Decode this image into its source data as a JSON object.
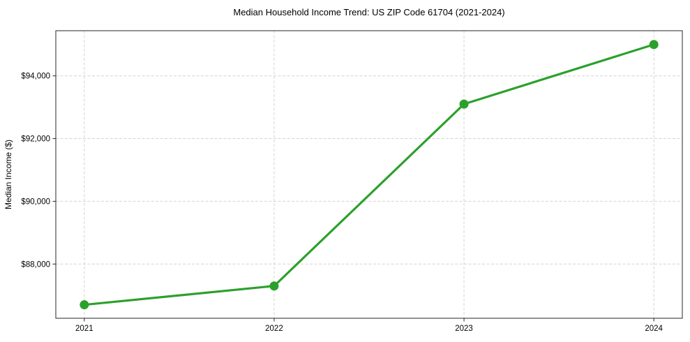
{
  "chart_data": {
    "type": "line",
    "title": "Median Household Income Trend: US ZIP Code 61704 (2021-2024)",
    "xlabel": "",
    "ylabel": "Median Income ($)",
    "x": [
      2021,
      2022,
      2023,
      2024
    ],
    "x_tick_labels": [
      "2021",
      "2022",
      "2023",
      "2024"
    ],
    "series": [
      {
        "name": "Median Household Income",
        "values": [
          86700,
          87300,
          93100,
          95000
        ]
      }
    ],
    "y_ticks": [
      88000,
      90000,
      92000,
      94000
    ],
    "y_tick_labels": [
      "$88,000",
      "$90,000",
      "$92,000",
      "$94,000"
    ],
    "xlim": [
      2020.85,
      2024.15
    ],
    "ylim": [
      86270,
      95440
    ],
    "grid": true,
    "legend": "none",
    "colors": {
      "line": "#2ca02c",
      "marker": "#2ca02c",
      "grid": "#d4d4d4",
      "spine": "#262626",
      "background": "#ffffff",
      "text": "#000000"
    }
  }
}
